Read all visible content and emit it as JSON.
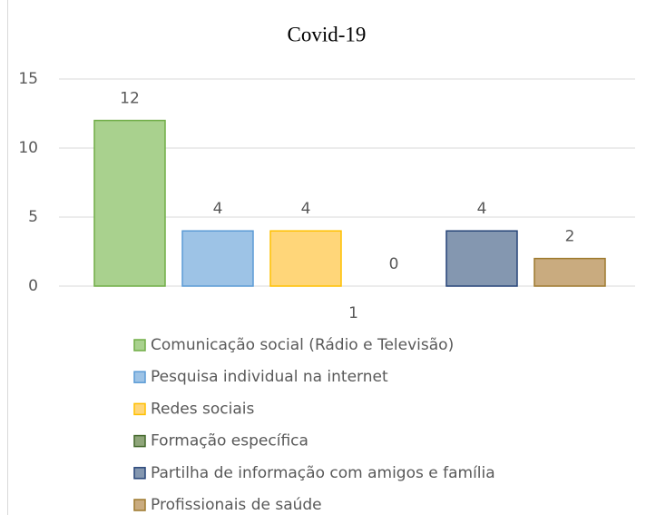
{
  "chart_data": {
    "type": "bar",
    "title": "Covid-19",
    "categories": [
      "1"
    ],
    "series": [
      {
        "name": "Comunicação social (Rádio e Televisão)",
        "color": "#a9d18e",
        "edgecolor": "#70ad47",
        "values": [
          12
        ]
      },
      {
        "name": "Pesquisa individual na internet",
        "color": "#9dc3e6",
        "edgecolor": "#5b9bd5",
        "values": [
          4
        ]
      },
      {
        "name": "Redes sociais",
        "color": "#ffd679",
        "edgecolor": "#ffc000",
        "values": [
          4
        ]
      },
      {
        "name": "Formação específica",
        "color": "#8fa57a",
        "edgecolor": "#43682b",
        "values": [
          0
        ]
      },
      {
        "name": "Partilha de informação com amigos e família",
        "color": "#8497b0",
        "edgecolor": "#264478",
        "values": [
          4
        ]
      },
      {
        "name": "Profissionais de saúde",
        "color": "#c9ab7f",
        "edgecolor": "#9e7a2e",
        "values": [
          2
        ]
      }
    ],
    "ylim": [
      0,
      15
    ],
    "yticks": [
      0,
      5,
      10,
      15
    ],
    "grid": true,
    "legend": "bottom"
  }
}
